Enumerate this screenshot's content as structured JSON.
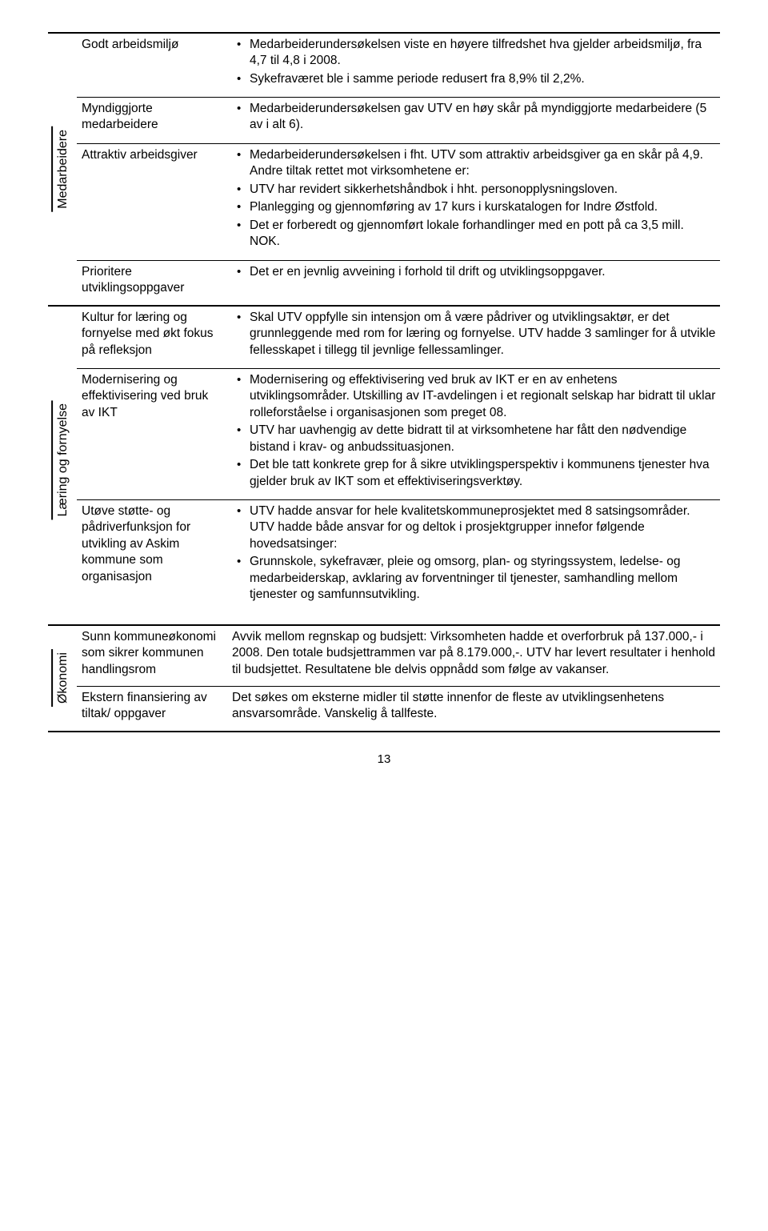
{
  "sections": {
    "medarbeidere": {
      "label": "Medarbeidere",
      "rows": [
        {
          "left": "Godt arbeidsmiljø",
          "bullets": [
            "Medarbeiderundersøkelsen viste en høyere tilfredshet hva gjelder arbeidsmiljø, fra 4,7 til 4,8 i 2008.",
            "Sykefraværet ble i samme periode redusert fra 8,9% til 2,2%."
          ]
        },
        {
          "left": "Myndiggjorte medarbeidere",
          "bullets": [
            "Medarbeiderundersøkelsen gav UTV en høy skår på myndiggjorte medarbeidere (5 av i alt 6)."
          ]
        },
        {
          "left": "Attraktiv arbeidsgiver",
          "bullets": [
            "Medarbeiderundersøkelsen i fht. UTV som attraktiv arbeidsgiver ga en skår på 4,9. Andre tiltak rettet mot virksomhetene er:",
            "UTV har revidert sikkerhetshåndbok i hht. personopplysningsloven.",
            "Planlegging og gjennomføring av 17 kurs i kurskatalogen for Indre Østfold.",
            "Det er forberedt og gjennomført lokale forhandlinger med en pott på ca 3,5 mill. NOK."
          ]
        },
        {
          "left": "Prioritere utviklingsoppgaver",
          "bullets": [
            "Det er en jevnlig avveining i forhold til drift og utviklingsoppgaver."
          ]
        }
      ]
    },
    "laering": {
      "label": "Læring og fornyelse",
      "rows": [
        {
          "left": "Kultur for læring og fornyelse med økt fokus på refleksjon",
          "bullets": [
            "Skal UTV oppfylle sin intensjon om å være pådriver og utviklingsaktør, er det grunnleggende med rom for læring og fornyelse. UTV hadde 3 samlinger for å utvikle fellesskapet i tillegg til jevnlige fellessamlinger."
          ]
        },
        {
          "left": "Modernisering og effektivisering ved bruk av IKT",
          "bullets": [
            "Modernisering og effektivisering ved bruk av IKT er en av enhetens utviklingsområder. Utskilling av IT-avdelingen i et regionalt selskap har bidratt til uklar rolleforståelse i organisasjonen som preget 08.",
            "UTV har uavhengig av dette bidratt til at virksomhetene har fått den nødvendige bistand i krav- og anbudssituasjonen.",
            "Det ble tatt konkrete grep for å sikre utviklingsperspektiv i kommunens tjenester hva gjelder bruk av IKT som et effektiviseringsverktøy."
          ]
        },
        {
          "left": "Utøve støtte- og pådriverfunksjon for utvikling av Askim kommune som organisasjon",
          "bullets": [
            "UTV hadde ansvar for hele kvalitetskommuneprosjektet med 8 satsingsområder. UTV hadde både ansvar for og deltok i prosjektgrupper innefor følgende hovedsatsinger:",
            "Grunnskole, sykefravær, pleie og omsorg, plan- og styringssystem, ledelse- og medarbeiderskap, avklaring av forventninger til tjenester, samhandling mellom tjenester og samfunnsutvikling."
          ]
        }
      ]
    },
    "okonomi": {
      "label": "Økonomi",
      "rows": [
        {
          "left": "Sunn kommuneøkonomi som sikrer kommunen handlingsrom",
          "text": "Avvik mellom regnskap og budsjett: Virksomheten hadde et overforbruk på 137.000,- i 2008. Den totale budsjettrammen var på 8.179.000,-. UTV har levert resultater i henhold til budsjettet. Resultatene ble delvis oppnådd som følge av vakanser."
        },
        {
          "left": "Ekstern finansiering av tiltak/ oppgaver",
          "text": "Det søkes om eksterne midler til støtte innenfor de fleste av utviklingsenhetens ansvarsområde. Vanskelig å tallfeste."
        }
      ]
    }
  },
  "page_number": "13"
}
